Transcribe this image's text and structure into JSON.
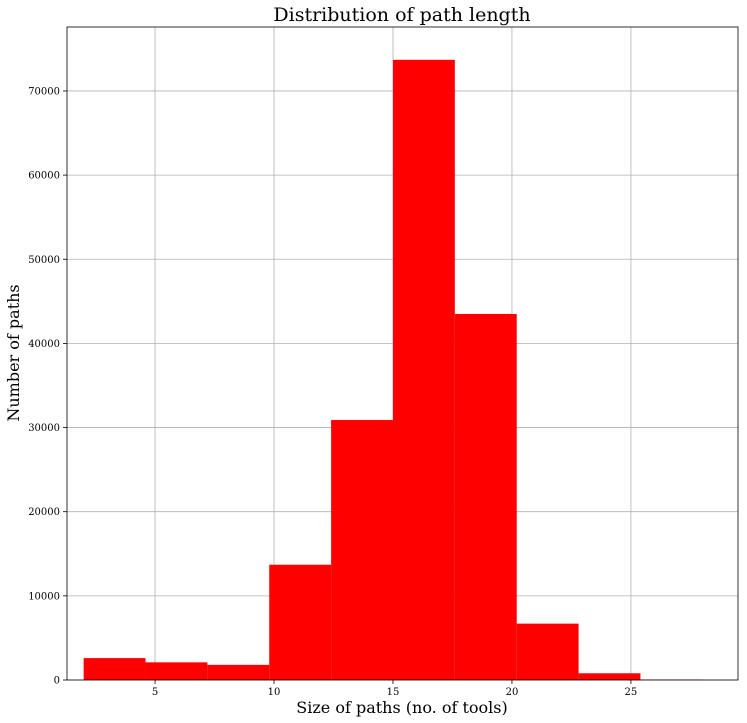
{
  "chart_data": {
    "type": "bar",
    "title": "Distribution of path length",
    "xlabel": "Size of paths (no. of tools)",
    "ylabel": "Number of paths",
    "xlim": [
      1.3,
      29.5
    ],
    "ylim": [
      0,
      77600
    ],
    "xticks": [
      5,
      10,
      15,
      20,
      25
    ],
    "yticks": [
      0,
      10000,
      20000,
      30000,
      40000,
      50000,
      60000,
      70000
    ],
    "grid": true,
    "bar_color": "#ff0000",
    "bins": [
      {
        "x0": 2.0,
        "x1": 4.6,
        "value": 2600
      },
      {
        "x0": 4.6,
        "x1": 7.2,
        "value": 2100
      },
      {
        "x0": 7.2,
        "x1": 9.8,
        "value": 1800
      },
      {
        "x0": 9.8,
        "x1": 12.4,
        "value": 13700
      },
      {
        "x0": 12.4,
        "x1": 15.0,
        "value": 30900
      },
      {
        "x0": 15.0,
        "x1": 17.6,
        "value": 73700
      },
      {
        "x0": 17.6,
        "x1": 20.2,
        "value": 43500
      },
      {
        "x0": 20.2,
        "x1": 22.8,
        "value": 6700
      },
      {
        "x0": 22.8,
        "x1": 25.4,
        "value": 800
      },
      {
        "x0": 25.4,
        "x1": 28.0,
        "value": 50
      }
    ]
  }
}
